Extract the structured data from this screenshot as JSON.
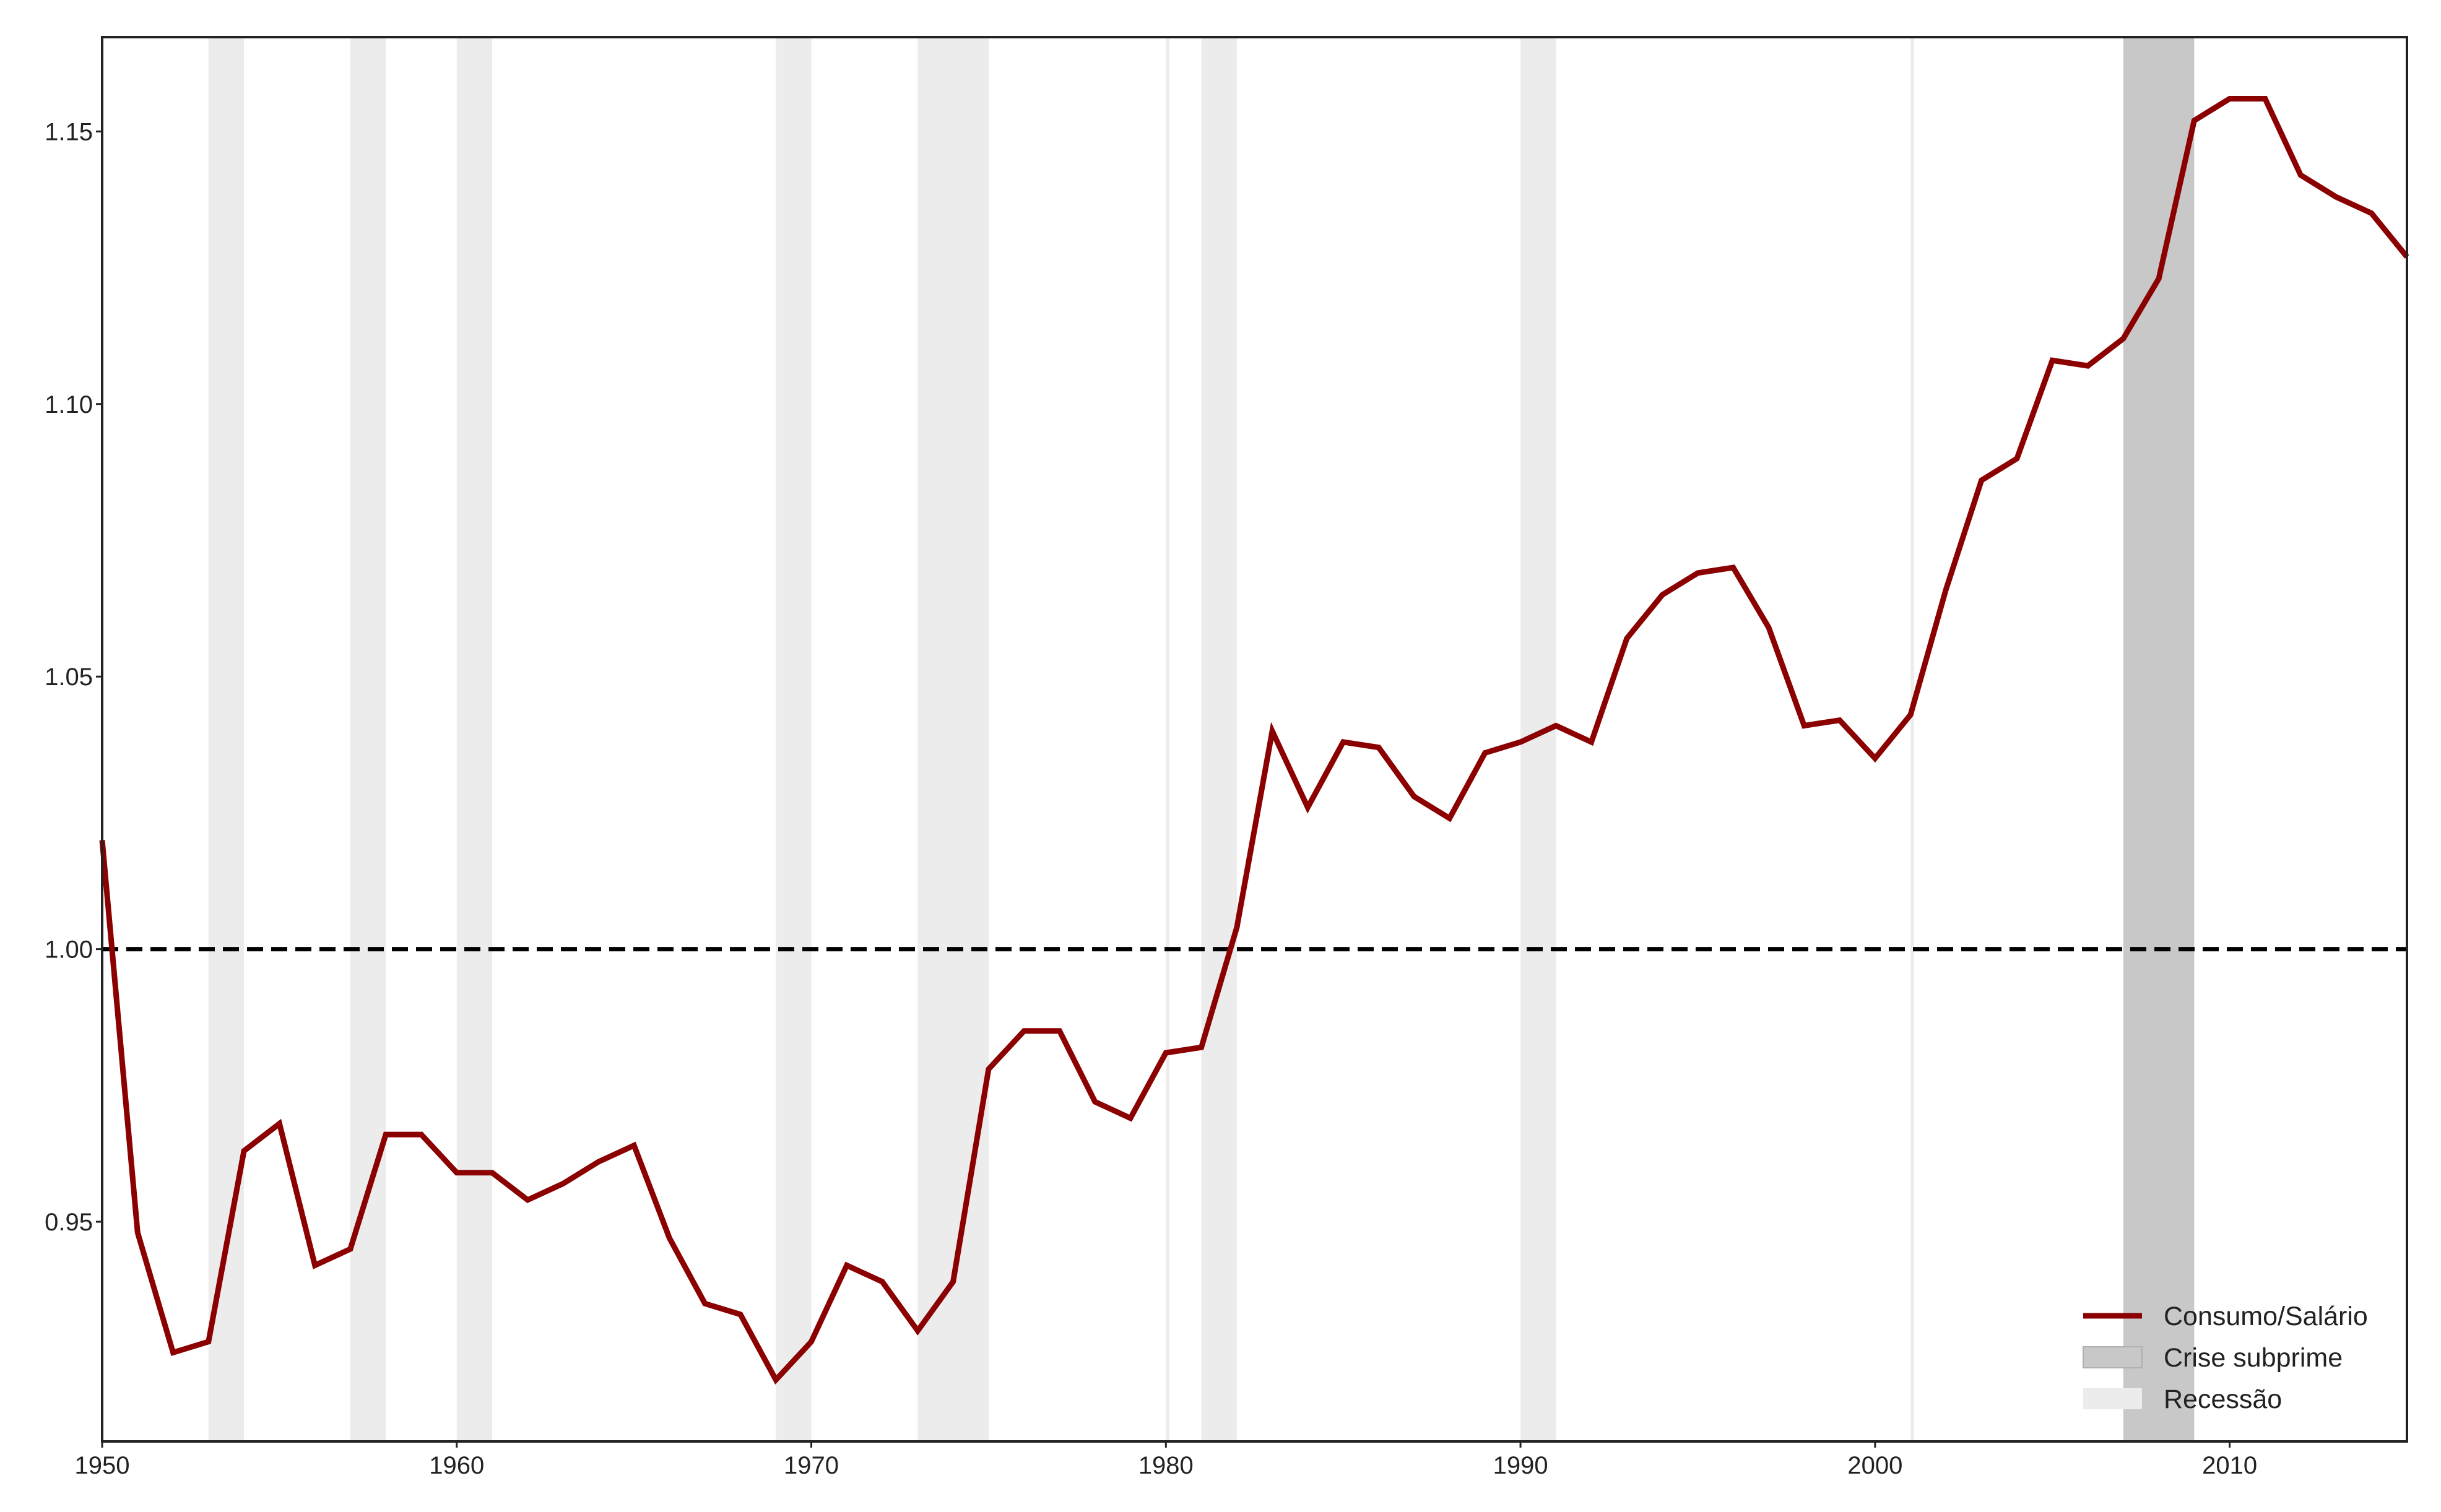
{
  "chart_data": {
    "type": "line",
    "xlim": [
      1950,
      2015
    ],
    "ylim": [
      0.9097,
      1.1673
    ],
    "x_ticks": [
      1950,
      1960,
      1970,
      1980,
      1990,
      2000,
      2010
    ],
    "x_tick_labels": [
      "1950",
      "1960",
      "1970",
      "1980",
      "1990",
      "2000",
      "2010"
    ],
    "y_ticks": [
      0.95,
      1.0,
      1.05,
      1.1,
      1.15
    ],
    "y_tick_labels": [
      "0.95",
      "1.00",
      "1.05",
      "1.10",
      "1.15"
    ],
    "grid": "off",
    "legend_position": "bottom-right",
    "reference_line": {
      "y": 1.0,
      "style": "dashed",
      "color": "#000000"
    },
    "series": [
      {
        "name": "Consumo/Salário",
        "color": "#8b0000",
        "x": [
          1950,
          1951,
          1952,
          1953,
          1954,
          1955,
          1956,
          1957,
          1958,
          1959,
          1960,
          1961,
          1962,
          1963,
          1964,
          1965,
          1966,
          1967,
          1968,
          1969,
          1970,
          1971,
          1972,
          1973,
          1974,
          1975,
          1976,
          1977,
          1978,
          1979,
          1980,
          1981,
          1982,
          1983,
          1984,
          1985,
          1986,
          1987,
          1988,
          1989,
          1990,
          1991,
          1992,
          1993,
          1994,
          1995,
          1996,
          1997,
          1998,
          1999,
          2000,
          2001,
          2002,
          2003,
          2004,
          2005,
          2006,
          2007,
          2008,
          2009,
          2010,
          2011,
          2012,
          2013,
          2014,
          2015
        ],
        "values": [
          1.02,
          0.948,
          0.926,
          0.928,
          0.963,
          0.968,
          0.942,
          0.945,
          0.966,
          0.966,
          0.959,
          0.959,
          0.954,
          0.957,
          0.961,
          0.964,
          0.947,
          0.935,
          0.933,
          0.921,
          0.928,
          0.942,
          0.939,
          0.93,
          0.939,
          0.978,
          0.985,
          0.985,
          0.972,
          0.969,
          0.981,
          0.982,
          1.004,
          1.04,
          1.026,
          1.038,
          1.037,
          1.028,
          1.024,
          1.036,
          1.038,
          1.041,
          1.038,
          1.057,
          1.065,
          1.069,
          1.07,
          1.059,
          1.041,
          1.042,
          1.035,
          1.043,
          1.066,
          1.086,
          1.09,
          1.108,
          1.107,
          1.112,
          1.123,
          1.152,
          1.156,
          1.156,
          1.142,
          1.138,
          1.135,
          1.127
        ]
      }
    ],
    "shaded_regions": [
      {
        "name": "Crise subprime",
        "color": "#c8c8c8",
        "ranges": [
          [
            2007,
            2009
          ]
        ]
      },
      {
        "name": "Recessão",
        "color": "#ececec",
        "ranges": [
          [
            1953,
            1954
          ],
          [
            1957,
            1958
          ],
          [
            1960,
            1961
          ],
          [
            1969,
            1970
          ],
          [
            1973,
            1975
          ],
          [
            1980,
            1980.1
          ],
          [
            1981,
            1982
          ],
          [
            1990,
            1991
          ],
          [
            2001,
            2001.1
          ]
        ]
      }
    ],
    "legend": [
      {
        "label": "Consumo/Salário",
        "kind": "line",
        "color": "#8b0000"
      },
      {
        "label": "Crise subprime",
        "kind": "patch",
        "color": "#c8c8c8"
      },
      {
        "label": "Recessão",
        "kind": "patch",
        "color": "#ececec"
      }
    ]
  }
}
